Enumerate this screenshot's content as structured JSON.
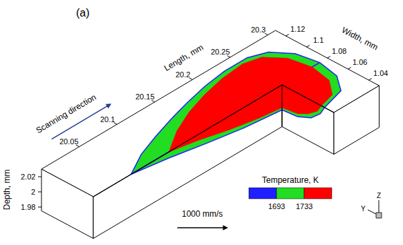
{
  "chart_data": {
    "type": "3d_contour",
    "panel_label": "(a)",
    "xlabel": "Length, mm",
    "ylabel": "Width, mm",
    "zlabel": "Depth, mm",
    "xlim": [
      20.0,
      20.31
    ],
    "ylim": [
      1.03,
      1.13
    ],
    "zlim": [
      1.975,
      2.03
    ],
    "xticks": [
      20.05,
      20.1,
      20.15,
      20.2,
      20.25,
      20.3
    ],
    "yticks": [
      1.04,
      1.06,
      1.08,
      1.1,
      1.12
    ],
    "zticks": [
      1.98,
      2,
      2.02
    ],
    "cut_length": 20.25,
    "centerline_width": 1.08,
    "annotation": "Scanning direction",
    "scale_label": "1000 mm/s",
    "axis_icon": [
      "Z",
      "Y"
    ],
    "colorbar": {
      "title": "Temperature, K",
      "colors": [
        "#2020ff",
        "#22dd22",
        "#ff0000"
      ],
      "ticks": [
        1693,
        1733
      ]
    },
    "series": [
      {
        "color": "#22dd22",
        "surface": [
          [
            20.05,
            1.08
          ],
          [
            20.08,
            1.092
          ],
          [
            20.11,
            1.1
          ],
          [
            20.14,
            1.107
          ],
          [
            20.17,
            1.113
          ],
          [
            20.2,
            1.118
          ],
          [
            20.23,
            1.121
          ],
          [
            20.26,
            1.121
          ],
          [
            20.28,
            1.115
          ],
          [
            20.295,
            1.1
          ],
          [
            20.3,
            1.08
          ]
        ],
        "front_surface": [
          [
            20.25,
            1.08
          ],
          [
            20.25,
            1.039
          ],
          [
            20.28,
            1.045
          ],
          [
            20.295,
            1.06
          ],
          [
            20.3,
            1.08
          ]
        ],
        "section": [
          [
            20.05,
            2.03
          ],
          [
            20.1,
            2.022
          ],
          [
            20.15,
            2.012
          ],
          [
            20.2,
            2.003
          ],
          [
            20.25,
            1.997
          ],
          [
            20.25,
            2.03
          ]
        ],
        "cross_section": [
          [
            1.08,
            2.03
          ],
          [
            1.039,
            2.03
          ],
          [
            1.043,
            2.019
          ],
          [
            1.052,
            2.007
          ],
          [
            1.065,
            1.999
          ],
          [
            1.08,
            1.997
          ]
        ]
      },
      {
        "color": "#ff0000",
        "surface": [
          [
            20.1,
            1.08
          ],
          [
            20.13,
            1.094
          ],
          [
            20.16,
            1.104
          ],
          [
            20.19,
            1.111
          ],
          [
            20.22,
            1.116
          ],
          [
            20.25,
            1.118
          ],
          [
            20.27,
            1.114
          ],
          [
            20.285,
            1.1
          ],
          [
            20.29,
            1.08
          ]
        ],
        "front_surface": [
          [
            20.25,
            1.08
          ],
          [
            20.25,
            1.042
          ],
          [
            20.27,
            1.046
          ],
          [
            20.285,
            1.06
          ],
          [
            20.29,
            1.08
          ]
        ],
        "section": [
          [
            20.1,
            2.03
          ],
          [
            20.14,
            2.022
          ],
          [
            20.18,
            2.012
          ],
          [
            20.22,
            2.004
          ],
          [
            20.25,
            2.0
          ],
          [
            20.25,
            2.03
          ]
        ],
        "cross_section": [
          [
            1.08,
            2.03
          ],
          [
            1.042,
            2.03
          ],
          [
            1.046,
            2.02
          ],
          [
            1.055,
            2.01
          ],
          [
            1.065,
            2.003
          ],
          [
            1.08,
            2.0
          ]
        ]
      }
    ]
  }
}
